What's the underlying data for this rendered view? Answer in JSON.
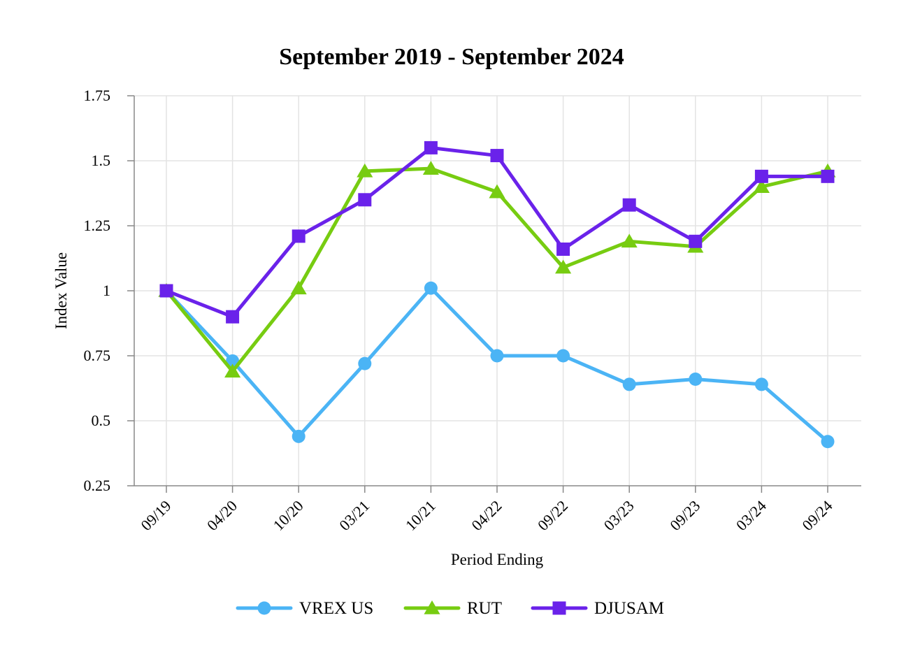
{
  "chart_data": {
    "type": "line",
    "title": "September 2019 - September 2024",
    "xlabel": "Period Ending",
    "ylabel": "Index Value",
    "categories": [
      "09/19",
      "04/20",
      "10/20",
      "03/21",
      "10/21",
      "04/22",
      "09/22",
      "03/23",
      "09/23",
      "03/24",
      "09/24"
    ],
    "ylim": [
      0.25,
      1.75
    ],
    "yticks": [
      "0.25",
      "0.5",
      "0.75",
      "1",
      "1.25",
      "1.5",
      "1.75"
    ],
    "grid": true,
    "legend_position": "bottom",
    "series": [
      {
        "name": "VREX US",
        "color": "#4bb4f5",
        "marker": "circle",
        "values": [
          1.0,
          0.73,
          0.44,
          0.72,
          1.01,
          0.75,
          0.75,
          0.64,
          0.66,
          0.64,
          0.42
        ]
      },
      {
        "name": "RUT",
        "color": "#77cc11",
        "marker": "triangle",
        "values": [
          1.0,
          0.69,
          1.01,
          1.46,
          1.47,
          1.38,
          1.09,
          1.19,
          1.17,
          1.4,
          1.46
        ]
      },
      {
        "name": "DJUSAM",
        "color": "#6a22ea",
        "marker": "square",
        "values": [
          1.0,
          0.9,
          1.21,
          1.35,
          1.55,
          1.52,
          1.16,
          1.33,
          1.19,
          1.44,
          1.44
        ]
      }
    ]
  }
}
